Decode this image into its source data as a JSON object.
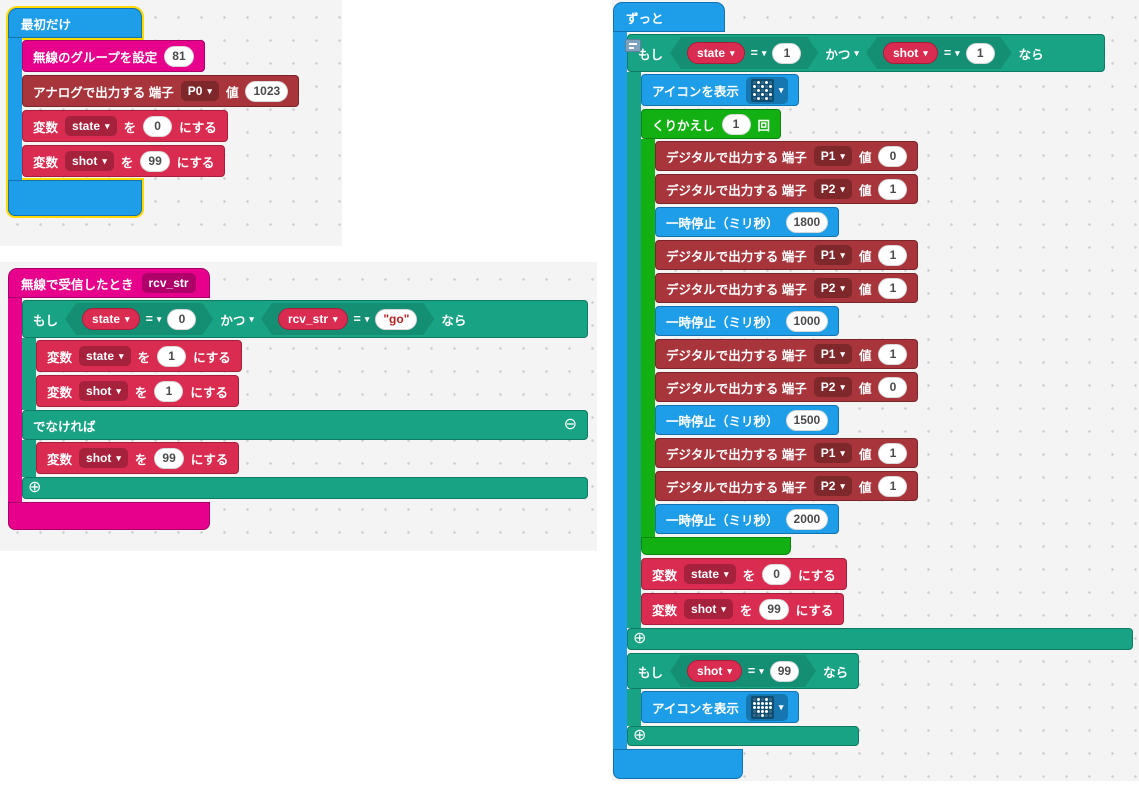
{
  "icons": {
    "caret": "▾",
    "plus": "⊕",
    "minus": "⊖"
  },
  "colors": {
    "basic_blue": "#1E9DE8",
    "radio_magenta": "#E6008C",
    "pins_maroon": "#A8353B",
    "variables_red": "#DA2C50",
    "logic_teal": "#18A384",
    "loops_green": "#12B012",
    "selection_yellow": "#FFD900",
    "number_field_text": "#4A4A4A",
    "string_field_text": "#B22222"
  },
  "on_start": {
    "hat_label": "最初だけ",
    "radio_set_group": {
      "label": "無線のグループを設定",
      "value": "81"
    },
    "analog_write": {
      "label": "アナログで出力する 端子",
      "pin": "P0",
      "value_label": "値",
      "value": "1023"
    },
    "set_state": {
      "label": "変数",
      "var": "state",
      "particle": "を",
      "value": "0",
      "suffix": "にする"
    },
    "set_shot": {
      "label": "変数",
      "var": "shot",
      "particle": "を",
      "value": "99",
      "suffix": "にする"
    }
  },
  "on_radio": {
    "hat_label": "無線で受信したとき",
    "param": "rcv_str",
    "if_label": "もし",
    "and_label": "かつ",
    "then_label": "なら",
    "else_label": "でなければ",
    "cond1": {
      "var": "state",
      "op": "=",
      "value": "0"
    },
    "cond2": {
      "var": "rcv_str",
      "op": "=",
      "value": "\"go\""
    },
    "then_set_state": {
      "label": "変数",
      "var": "state",
      "particle": "を",
      "value": "1",
      "suffix": "にする"
    },
    "then_set_shot": {
      "label": "変数",
      "var": "shot",
      "particle": "を",
      "value": "1",
      "suffix": "にする"
    },
    "else_set_shot": {
      "label": "変数",
      "var": "shot",
      "particle": "を",
      "value": "99",
      "suffix": "にする"
    }
  },
  "forever": {
    "hat_label": "ずっと",
    "if1": {
      "if_label": "もし",
      "and_label": "かつ",
      "then_label": "なら",
      "cond1": {
        "var": "state",
        "op": "=",
        "value": "1"
      },
      "cond2": {
        "var": "shot",
        "op": "=",
        "value": "1"
      }
    },
    "show_icon_checkerboard": {
      "label": "アイコンを表示",
      "icon": "checkerboard-icon",
      "pattern": [
        "01010",
        "10101",
        "01010",
        "10101",
        "01010"
      ]
    },
    "repeat": {
      "label": "くりかえし",
      "count": "1",
      "suffix": "回",
      "rows": [
        {
          "kind": "digital",
          "label": "デジタルで出力する 端子",
          "pin": "P1",
          "value_label": "値",
          "value": "0"
        },
        {
          "kind": "digital",
          "label": "デジタルで出力する 端子",
          "pin": "P2",
          "value_label": "値",
          "value": "1"
        },
        {
          "kind": "pause",
          "label": "一時停止（ミリ秒）",
          "value": "1800"
        },
        {
          "kind": "digital",
          "label": "デジタルで出力する 端子",
          "pin": "P1",
          "value_label": "値",
          "value": "1"
        },
        {
          "kind": "digital",
          "label": "デジタルで出力する 端子",
          "pin": "P2",
          "value_label": "値",
          "value": "1"
        },
        {
          "kind": "pause",
          "label": "一時停止（ミリ秒）",
          "value": "1000"
        },
        {
          "kind": "digital",
          "label": "デジタルで出力する 端子",
          "pin": "P1",
          "value_label": "値",
          "value": "1"
        },
        {
          "kind": "digital",
          "label": "デジタルで出力する 端子",
          "pin": "P2",
          "value_label": "値",
          "value": "0"
        },
        {
          "kind": "pause",
          "label": "一時停止（ミリ秒）",
          "value": "1500"
        },
        {
          "kind": "digital",
          "label": "デジタルで出力する 端子",
          "pin": "P1",
          "value_label": "値",
          "value": "1"
        },
        {
          "kind": "digital",
          "label": "デジタルで出力する 端子",
          "pin": "P2",
          "value_label": "値",
          "value": "1"
        },
        {
          "kind": "pause",
          "label": "一時停止（ミリ秒）",
          "value": "2000"
        }
      ]
    },
    "set_state": {
      "label": "変数",
      "var": "state",
      "particle": "を",
      "value": "0",
      "suffix": "にする"
    },
    "set_shot": {
      "label": "変数",
      "var": "shot",
      "particle": "を",
      "value": "99",
      "suffix": "にする"
    },
    "if2": {
      "if_label": "もし",
      "then_label": "なら",
      "cond": {
        "var": "shot",
        "op": "=",
        "value": "99"
      }
    },
    "show_icon_heart": {
      "label": "アイコンを表示",
      "icon": "heart-icon",
      "pattern": [
        "01010",
        "11111",
        "11111",
        "01110",
        "00100"
      ]
    }
  }
}
